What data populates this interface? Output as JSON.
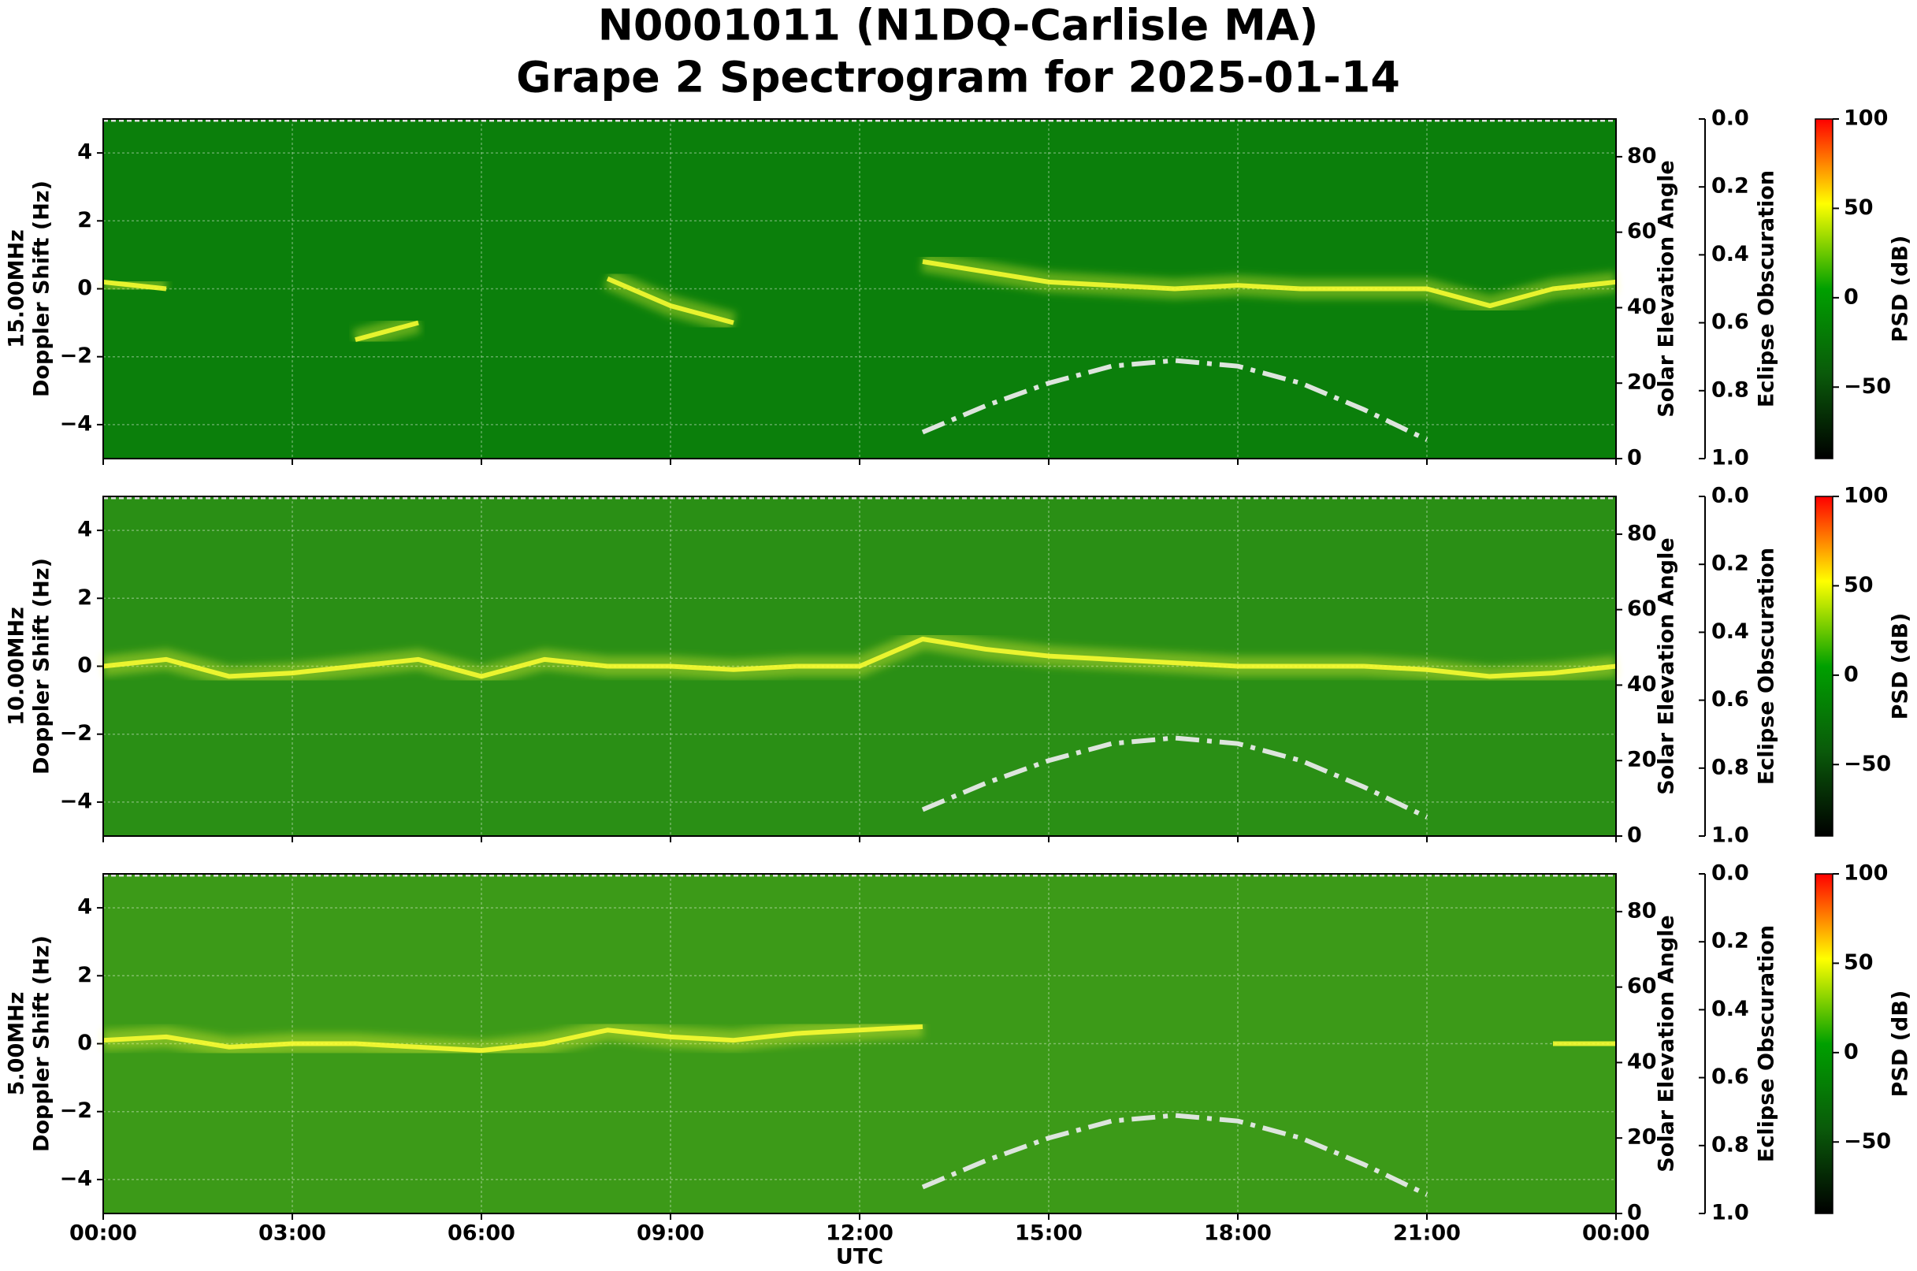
{
  "chart_data": [
    {
      "type": "spectrogram",
      "title": [
        "N0001011 (N1DQ-Carlisle MA)",
        "Grape 2 Spectrogram for 2025-01-14"
      ],
      "ylabel": [
        "15.00MHz",
        "Doppler Shift (Hz)"
      ],
      "y2label": "Solar Elevation Angle",
      "y3label": "Eclipse Obscuration",
      "clabel": "PSD (dB)",
      "background": "#0b7f0b",
      "colormap": [
        "#000000",
        "#0a5a0a",
        "#00a000",
        "#ffff00",
        "#ff0000"
      ],
      "grid": true,
      "xlim": [
        0,
        24
      ],
      "xticks": [
        0,
        3,
        6,
        9,
        12,
        15,
        18,
        21,
        24
      ],
      "ylim": [
        -5,
        5
      ],
      "yticks": [
        {
          "value": -4,
          "label": "−4"
        },
        {
          "value": -2,
          "label": "−2"
        },
        0,
        2,
        4
      ],
      "y2lim": [
        0,
        90
      ],
      "y2ticks": [
        0,
        20,
        40,
        60,
        80
      ],
      "y3lim": [
        1,
        0
      ],
      "y3ticks": [
        {
          "value": 0,
          "label": "0.0"
        },
        {
          "value": 0.2,
          "label": "0.2"
        },
        {
          "value": 0.4,
          "label": "0.4"
        },
        {
          "value": 0.6,
          "label": "0.6"
        },
        {
          "value": 0.8,
          "label": "0.8"
        },
        {
          "value": 1,
          "label": "1.0"
        }
      ],
      "clim": [
        -90,
        100
      ],
      "cticks": [
        {
          "value": -50,
          "label": "−50"
        },
        0,
        50,
        100
      ],
      "x": [
        0,
        1,
        2,
        3,
        4,
        5,
        6,
        7,
        8,
        9,
        10,
        11,
        12,
        13,
        14,
        15,
        16,
        17,
        18,
        19,
        20,
        21,
        22,
        23,
        24
      ],
      "series": [
        {
          "color": "#ffff33",
          "values": [
            0.2,
            0,
            null,
            null,
            -1.5,
            -1,
            null,
            null,
            0.3,
            -0.5,
            -1,
            null,
            null,
            0.8,
            0.5,
            0.2,
            0.1,
            0,
            0.1,
            0,
            0,
            0,
            -0.5,
            0,
            0.2
          ]
        },
        {
          "color": "#dde5dd",
          "axis": "y2",
          "values": [
            null,
            null,
            null,
            null,
            null,
            null,
            null,
            null,
            null,
            null,
            null,
            null,
            null,
            7,
            14,
            20,
            24.5,
            26,
            24.5,
            20,
            13,
            5,
            null,
            null,
            null
          ]
        }
      ]
    },
    {
      "type": "spectrogram",
      "ylabel": [
        "10.00MHz",
        "Doppler Shift (Hz)"
      ],
      "y2label": "Solar Elevation Angle",
      "y3label": "Eclipse Obscuration",
      "clabel": "PSD (dB)",
      "background": "#2a8f15",
      "colormap": [
        "#000000",
        "#0a5a0a",
        "#00a000",
        "#ffff00",
        "#ff0000"
      ],
      "grid": true,
      "xlim": [
        0,
        24
      ],
      "xticks": [
        0,
        3,
        6,
        9,
        12,
        15,
        18,
        21,
        24
      ],
      "ylim": [
        -5,
        5
      ],
      "yticks": [
        {
          "value": -4,
          "label": "−4"
        },
        {
          "value": -2,
          "label": "−2"
        },
        0,
        2,
        4
      ],
      "y2lim": [
        0,
        90
      ],
      "y2ticks": [
        0,
        20,
        40,
        60,
        80
      ],
      "y3lim": [
        1,
        0
      ],
      "y3ticks": [
        {
          "value": 0,
          "label": "0.0"
        },
        {
          "value": 0.2,
          "label": "0.2"
        },
        {
          "value": 0.4,
          "label": "0.4"
        },
        {
          "value": 0.6,
          "label": "0.6"
        },
        {
          "value": 0.8,
          "label": "0.8"
        },
        {
          "value": 1,
          "label": "1.0"
        }
      ],
      "clim": [
        -90,
        100
      ],
      "cticks": [
        {
          "value": -50,
          "label": "−50"
        },
        0,
        50,
        100
      ],
      "x": [
        0,
        1,
        2,
        3,
        4,
        5,
        6,
        7,
        8,
        9,
        10,
        11,
        12,
        13,
        14,
        15,
        16,
        17,
        18,
        19,
        20,
        21,
        22,
        23,
        24
      ],
      "series": [
        {
          "color": "#ffff33",
          "values": [
            0,
            0.2,
            -0.3,
            -0.2,
            0,
            0.2,
            -0.3,
            0.2,
            0,
            0,
            -0.1,
            0,
            0,
            0.8,
            0.5,
            0.3,
            0.2,
            0.1,
            0,
            0,
            0,
            -0.1,
            -0.3,
            -0.2,
            0
          ]
        },
        {
          "color": "#dde5dd",
          "axis": "y2",
          "values": [
            null,
            null,
            null,
            null,
            null,
            null,
            null,
            null,
            null,
            null,
            null,
            null,
            null,
            7,
            14,
            20,
            24.5,
            26,
            24.5,
            20,
            13,
            5,
            null,
            null,
            null
          ]
        }
      ]
    },
    {
      "type": "spectrogram",
      "ylabel": [
        "5.00MHz",
        "Doppler Shift (Hz)"
      ],
      "y2label": "Solar Elevation Angle",
      "y3label": "Eclipse Obscuration",
      "clabel": "PSD (dB)",
      "background": "#3c9a18",
      "colormap": [
        "#000000",
        "#0a5a0a",
        "#00a000",
        "#ffff00",
        "#ff0000"
      ],
      "grid": true,
      "xlabel": "UTC",
      "xlim": [
        0,
        24
      ],
      "xticks": [
        {
          "value": 0,
          "label": "00:00"
        },
        {
          "value": 3,
          "label": "03:00"
        },
        {
          "value": 6,
          "label": "06:00"
        },
        {
          "value": 9,
          "label": "09:00"
        },
        {
          "value": 12,
          "label": "12:00"
        },
        {
          "value": 15,
          "label": "15:00"
        },
        {
          "value": 18,
          "label": "18:00"
        },
        {
          "value": 21,
          "label": "21:00"
        },
        {
          "value": 24,
          "label": "00:00"
        }
      ],
      "ylim": [
        -5,
        5
      ],
      "yticks": [
        {
          "value": -4,
          "label": "−4"
        },
        {
          "value": -2,
          "label": "−2"
        },
        0,
        2,
        4
      ],
      "y2lim": [
        0,
        90
      ],
      "y2ticks": [
        0,
        20,
        40,
        60,
        80
      ],
      "y3lim": [
        1,
        0
      ],
      "y3ticks": [
        {
          "value": 0,
          "label": "0.0"
        },
        {
          "value": 0.2,
          "label": "0.2"
        },
        {
          "value": 0.4,
          "label": "0.4"
        },
        {
          "value": 0.6,
          "label": "0.6"
        },
        {
          "value": 0.8,
          "label": "0.8"
        },
        {
          "value": 1,
          "label": "1.0"
        }
      ],
      "clim": [
        -90,
        100
      ],
      "cticks": [
        {
          "value": -50,
          "label": "−50"
        },
        0,
        50,
        100
      ],
      "x": [
        0,
        1,
        2,
        3,
        4,
        5,
        6,
        7,
        8,
        9,
        10,
        11,
        12,
        13,
        14,
        15,
        16,
        17,
        18,
        19,
        20,
        21,
        22,
        23,
        24
      ],
      "series": [
        {
          "color": "#ffff33",
          "values": [
            0.1,
            0.2,
            -0.1,
            0,
            0,
            -0.1,
            -0.2,
            0,
            0.4,
            0.2,
            0.1,
            0.3,
            0.4,
            0.5,
            null,
            null,
            null,
            null,
            null,
            null,
            null,
            null,
            null,
            0,
            0
          ]
        },
        {
          "color": "#dde5dd",
          "axis": "y2",
          "values": [
            null,
            null,
            null,
            null,
            null,
            null,
            null,
            null,
            null,
            null,
            null,
            null,
            null,
            7,
            14,
            20,
            24.5,
            26,
            24.5,
            20,
            13,
            5,
            null,
            null,
            null
          ]
        }
      ]
    }
  ]
}
